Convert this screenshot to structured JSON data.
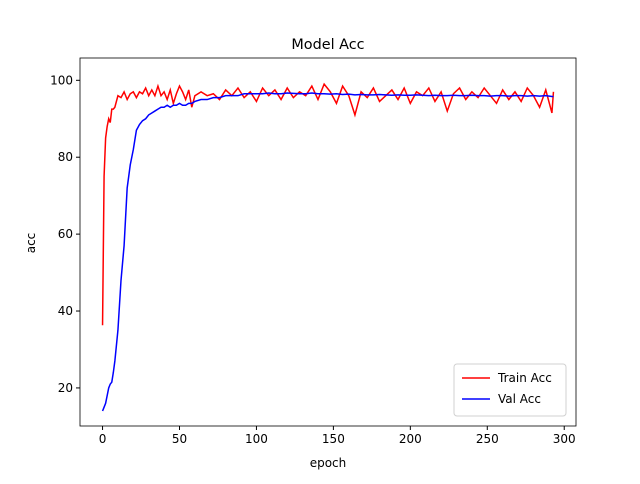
{
  "chart_data": {
    "type": "line",
    "title": "Model Acc",
    "x_label": "epoch",
    "y_label": "acc",
    "x": [
      0,
      1,
      2,
      3,
      4,
      5,
      6,
      7,
      8,
      10,
      12,
      14,
      16,
      18,
      20,
      22,
      24,
      26,
      28,
      30,
      32,
      34,
      36,
      38,
      40,
      42,
      44,
      46,
      48,
      50,
      52,
      54,
      56,
      58,
      60,
      64,
      68,
      72,
      76,
      80,
      84,
      88,
      92,
      96,
      100,
      104,
      108,
      112,
      116,
      120,
      124,
      128,
      132,
      136,
      140,
      144,
      148,
      152,
      156,
      160,
      164,
      168,
      172,
      176,
      180,
      184,
      188,
      192,
      196,
      200,
      204,
      208,
      212,
      216,
      220,
      224,
      228,
      232,
      236,
      240,
      244,
      248,
      252,
      256,
      260,
      264,
      268,
      272,
      276,
      280,
      284,
      288,
      292,
      293
    ],
    "series": [
      {
        "name": "Train Acc",
        "color": "#ff0000",
        "values": [
          36.3,
          75,
          85,
          88,
          90,
          89,
          92.5,
          92.5,
          93,
          96,
          95.5,
          97,
          95,
          96.5,
          97,
          95.5,
          97,
          96.5,
          98,
          96,
          97.5,
          96,
          98.5,
          96,
          97,
          95,
          97.5,
          94,
          96.5,
          98.5,
          97,
          95,
          97.5,
          93,
          96,
          97,
          96,
          96.5,
          95,
          97.5,
          96,
          98,
          95.5,
          97,
          94.5,
          98,
          96,
          97.5,
          95,
          98,
          95.5,
          97,
          96,
          98.5,
          95,
          99,
          97,
          94,
          98.5,
          96,
          91,
          97,
          95.5,
          98,
          94.5,
          96,
          97.5,
          95,
          98,
          94,
          97,
          96,
          98,
          94.5,
          97,
          92,
          96.5,
          98,
          95,
          97,
          95.5,
          98,
          96,
          94,
          97.5,
          95,
          97,
          94.5,
          98,
          96,
          93,
          97.5,
          91.5,
          97
        ]
      },
      {
        "name": "Val Acc",
        "color": "#0000ff",
        "values": [
          14,
          15,
          16,
          18,
          20,
          21,
          21.5,
          24,
          27,
          35,
          48,
          57,
          72,
          78,
          82,
          87,
          88.5,
          89.5,
          90,
          91,
          91.5,
          92,
          92.5,
          93,
          93,
          93.5,
          93,
          93.5,
          93.5,
          94,
          93.5,
          93.5,
          94,
          94,
          94.5,
          95,
          95,
          95.5,
          95.5,
          96,
          96,
          96,
          96.5,
          96.5,
          96.5,
          96.5,
          96.7,
          96.5,
          96.5,
          96.7,
          96.6,
          96.5,
          96.5,
          96.7,
          96.5,
          96.5,
          96.4,
          96.5,
          96.3,
          96.4,
          96.2,
          96.3,
          96.2,
          96.2,
          96.3,
          96.2,
          96.1,
          96.2,
          96.1,
          96.1,
          96.2,
          96.1,
          96,
          96.1,
          96,
          96,
          96.1,
          96,
          96,
          96.1,
          96,
          96,
          95.9,
          96,
          96,
          95.9,
          96,
          96,
          95.9,
          96,
          95.9,
          96,
          95.8,
          95.8
        ]
      }
    ],
    "xlim": [
      -14.65,
      307.65
    ],
    "ylim": [
      10.1,
      105.8
    ],
    "xticks": [
      0,
      50,
      100,
      150,
      200,
      250,
      300
    ],
    "yticks": [
      20,
      40,
      60,
      80,
      100
    ],
    "grid": false,
    "legend": "lower right"
  }
}
